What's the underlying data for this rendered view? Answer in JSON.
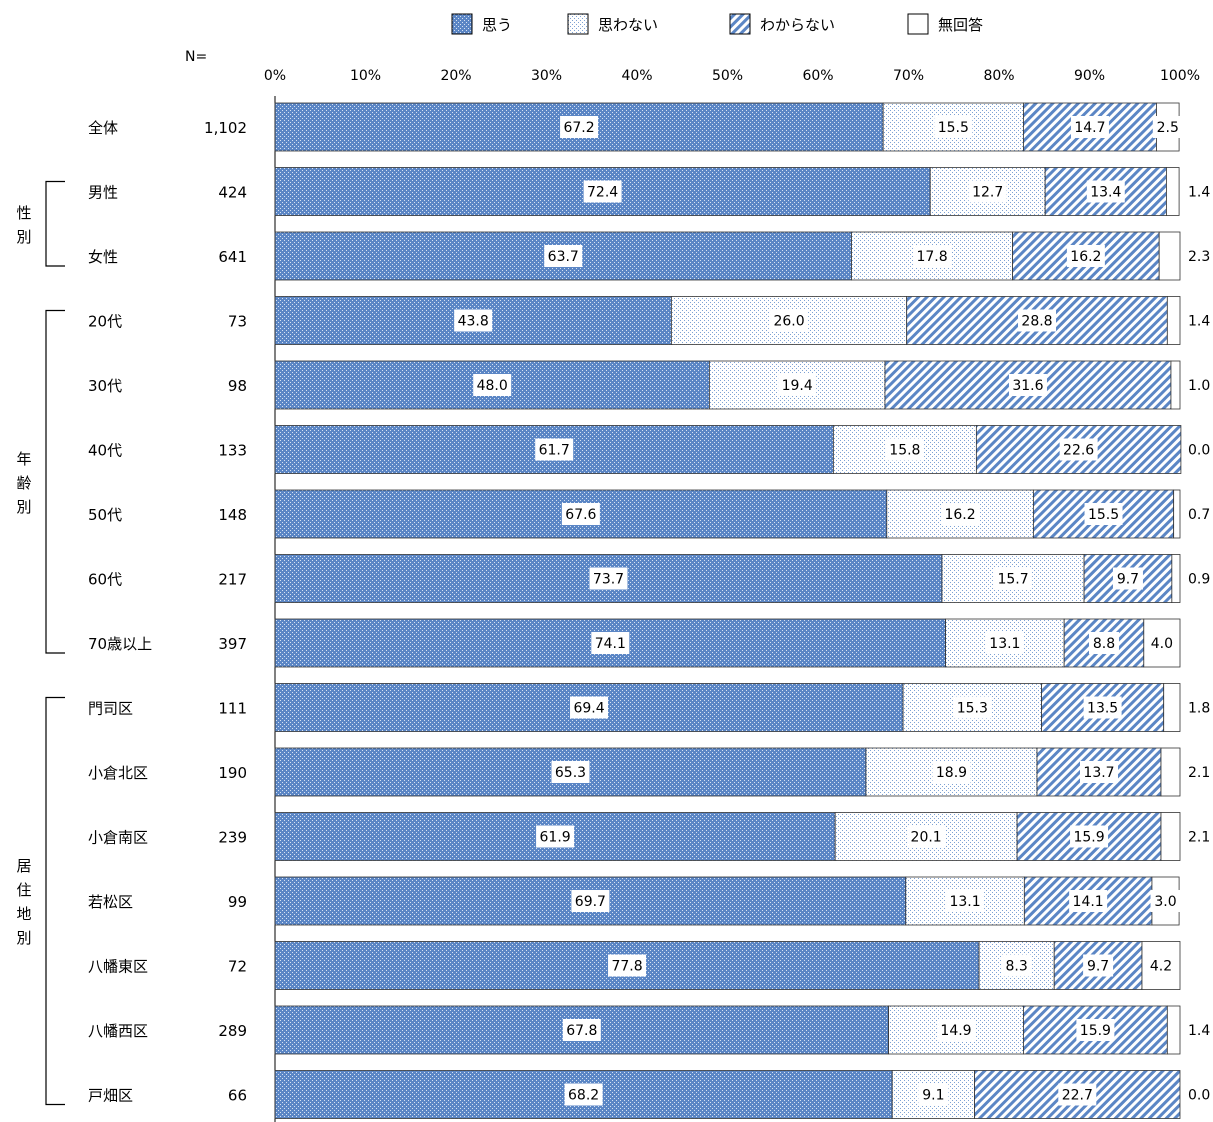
{
  "chart_data": {
    "type": "bar",
    "orientation": "horizontal",
    "stacked": true,
    "percent": true,
    "n_header": "N=",
    "xlim": [
      0,
      100
    ],
    "x_ticks": [
      "0%",
      "10%",
      "20%",
      "30%",
      "40%",
      "50%",
      "60%",
      "70%",
      "80%",
      "90%",
      "100%"
    ],
    "grid": false,
    "legend_position": "top",
    "series": [
      {
        "name": "思う",
        "color": "#5b86c5",
        "pattern": "dots"
      },
      {
        "name": "思わない",
        "color": "#bcd0ea",
        "pattern": "fine-dots"
      },
      {
        "name": "わからない",
        "color": "#6f95cd",
        "pattern": "diagonal-lines"
      },
      {
        "name": "無回答",
        "color": "#ffffff",
        "pattern": "none"
      }
    ],
    "groups": [
      {
        "label": "",
        "rows": [
          0
        ]
      },
      {
        "label": "性別",
        "rows": [
          1,
          2
        ]
      },
      {
        "label": "年齢別",
        "rows": [
          3,
          4,
          5,
          6,
          7,
          8
        ]
      },
      {
        "label": "居住地別",
        "rows": [
          9,
          10,
          11,
          12,
          13,
          14,
          15
        ]
      }
    ],
    "rows": [
      {
        "category": "全体",
        "n": "1,102",
        "values": [
          67.2,
          15.5,
          14.7,
          2.5
        ],
        "labels": [
          "67.2",
          "15.5",
          "14.7",
          "2.5"
        ]
      },
      {
        "category": "男性",
        "n": "424",
        "values": [
          72.4,
          12.7,
          13.4,
          1.4
        ],
        "labels": [
          "72.4",
          "12.7",
          "13.4",
          "1.4"
        ]
      },
      {
        "category": "女性",
        "n": "641",
        "values": [
          63.7,
          17.8,
          16.2,
          2.3
        ],
        "labels": [
          "63.7",
          "17.8",
          "16.2",
          "2.3"
        ]
      },
      {
        "category": "20代",
        "n": "73",
        "values": [
          43.8,
          26.0,
          28.8,
          1.4
        ],
        "labels": [
          "43.8",
          "26.0",
          "28.8",
          "1.4"
        ]
      },
      {
        "category": "30代",
        "n": "98",
        "values": [
          48.0,
          19.4,
          31.6,
          1.0
        ],
        "labels": [
          "48.0",
          "19.4",
          "31.6",
          "1.0"
        ]
      },
      {
        "category": "40代",
        "n": "133",
        "values": [
          61.7,
          15.8,
          22.6,
          0.0
        ],
        "labels": [
          "61.7",
          "15.8",
          "22.6",
          "0.0"
        ]
      },
      {
        "category": "50代",
        "n": "148",
        "values": [
          67.6,
          16.2,
          15.5,
          0.7
        ],
        "labels": [
          "67.6",
          "16.2",
          "15.5",
          "0.7"
        ]
      },
      {
        "category": "60代",
        "n": "217",
        "values": [
          73.7,
          15.7,
          9.7,
          0.9
        ],
        "labels": [
          "73.7",
          "15.7",
          "9.7",
          "0.9"
        ]
      },
      {
        "category": "70歳以上",
        "n": "397",
        "values": [
          74.1,
          13.1,
          8.8,
          4.0
        ],
        "labels": [
          "74.1",
          "13.1",
          "8.8",
          "4.0"
        ]
      },
      {
        "category": "門司区",
        "n": "111",
        "values": [
          69.4,
          15.3,
          13.5,
          1.8
        ],
        "labels": [
          "69.4",
          "15.3",
          "13.5",
          "1.8"
        ]
      },
      {
        "category": "小倉北区",
        "n": "190",
        "values": [
          65.3,
          18.9,
          13.7,
          2.1
        ],
        "labels": [
          "65.3",
          "18.9",
          "13.7",
          "2.1"
        ]
      },
      {
        "category": "小倉南区",
        "n": "239",
        "values": [
          61.9,
          20.1,
          15.9,
          2.1
        ],
        "labels": [
          "61.9",
          "20.1",
          "15.9",
          "2.1"
        ]
      },
      {
        "category": "若松区",
        "n": "99",
        "values": [
          69.7,
          13.1,
          14.1,
          3.0
        ],
        "labels": [
          "69.7",
          "13.1",
          "14.1",
          "3.0"
        ]
      },
      {
        "category": "八幡東区",
        "n": "72",
        "values": [
          77.8,
          8.3,
          9.7,
          4.2
        ],
        "labels": [
          "77.8",
          "8.3",
          "9.7",
          "4.2"
        ]
      },
      {
        "category": "八幡西区",
        "n": "289",
        "values": [
          67.8,
          14.9,
          15.9,
          1.4
        ],
        "labels": [
          "67.8",
          "14.9",
          "15.9",
          "1.4"
        ]
      },
      {
        "category": "戸畑区",
        "n": "66",
        "values": [
          68.2,
          9.1,
          22.7,
          0.0
        ],
        "labels": [
          "68.2",
          "9.1",
          "22.7",
          "0.0"
        ]
      }
    ]
  }
}
